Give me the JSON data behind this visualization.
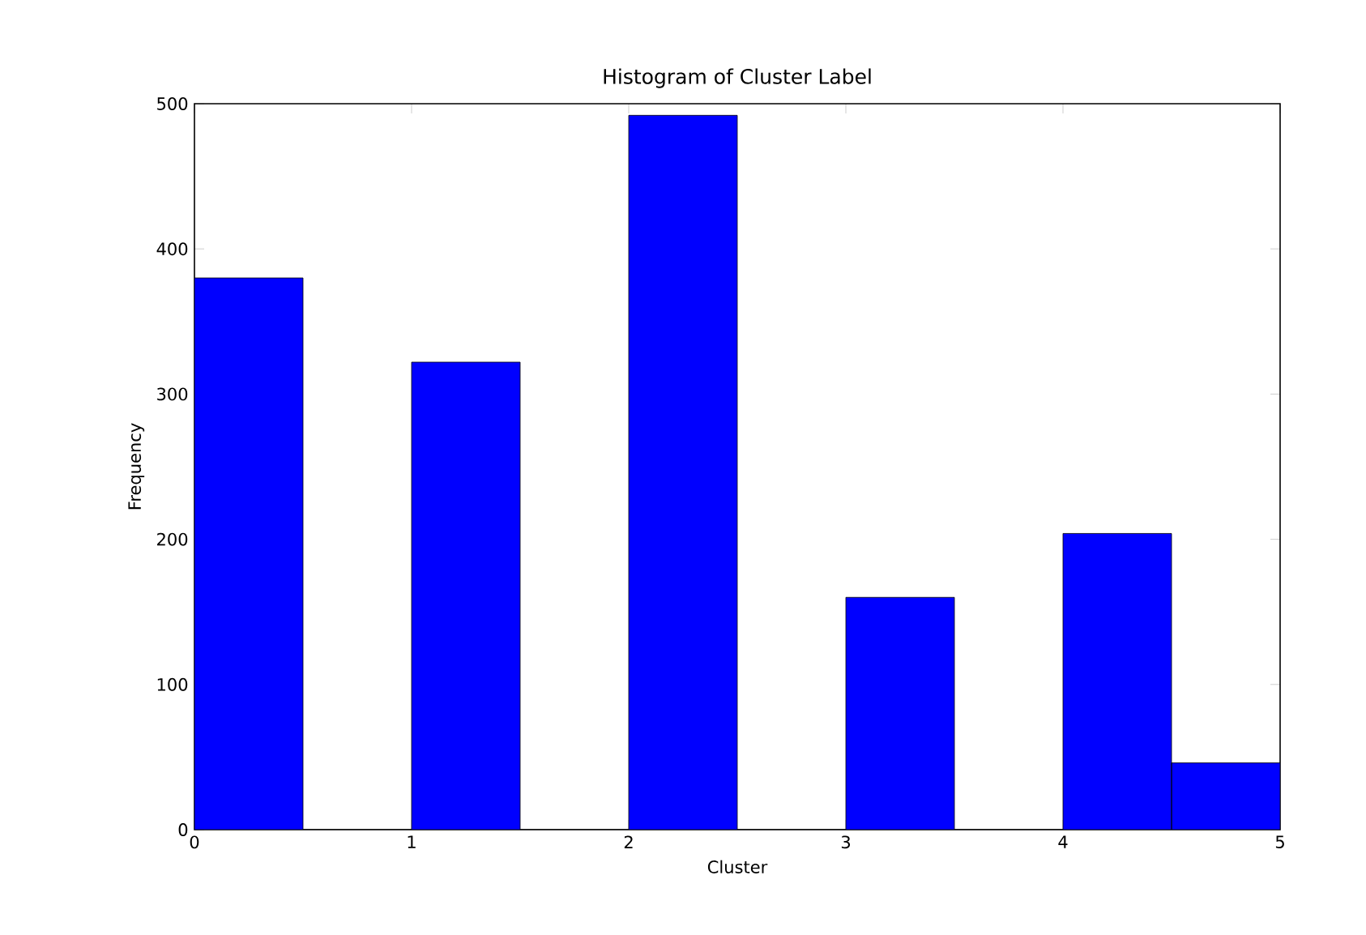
{
  "chart_data": {
    "type": "histogram",
    "title": "Histogram of Cluster Label",
    "xlabel": "Cluster",
    "ylabel": "Frequency",
    "bins": [
      0,
      0.5,
      1,
      1.5,
      2,
      2.5,
      3,
      3.5,
      4,
      4.5,
      5
    ],
    "values": [
      380,
      0,
      322,
      0,
      492,
      0,
      160,
      0,
      204,
      46
    ],
    "color": "#0000ff",
    "xlim": [
      0,
      5
    ],
    "ylim": [
      0,
      500
    ],
    "xticks": [
      0,
      1,
      2,
      3,
      4,
      5
    ],
    "yticks": [
      0,
      100,
      200,
      300,
      400,
      500
    ]
  }
}
